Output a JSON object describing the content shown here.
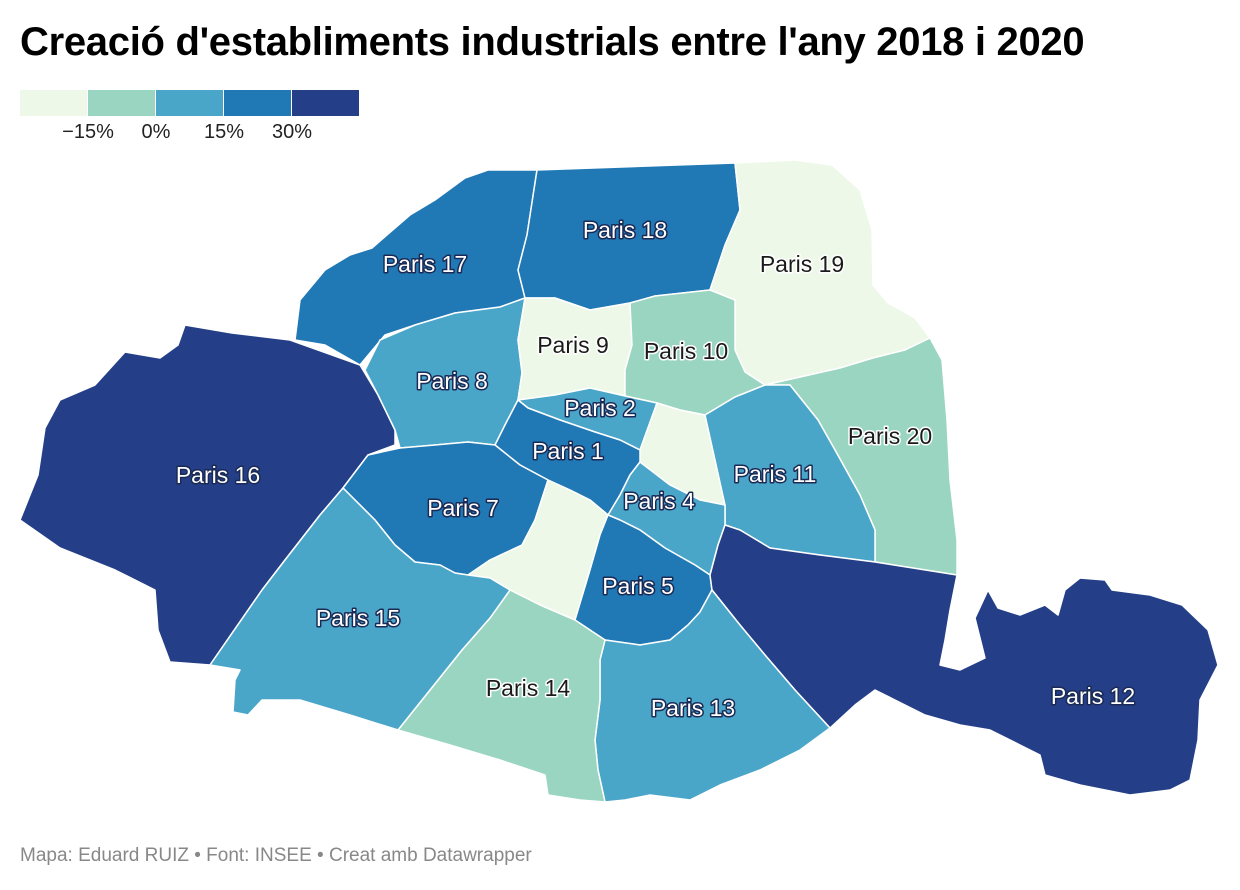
{
  "title": "Creació d'establiments industrials entre l'any 2018 i 2020",
  "legend": {
    "colors": [
      "#edf8e9",
      "#99d5c1",
      "#4aa6c9",
      "#2078b4",
      "#243f88"
    ],
    "ticks": [
      "−15%",
      "0%",
      "15%",
      "30%"
    ]
  },
  "districts": [
    {
      "id": "p1",
      "label": "Paris 1",
      "bin": 3
    },
    {
      "id": "p2",
      "label": "Paris 2",
      "bin": 2
    },
    {
      "id": "p3",
      "label": "",
      "bin": 0
    },
    {
      "id": "p4",
      "label": "Paris 4",
      "bin": 2
    },
    {
      "id": "p5",
      "label": "Paris 5",
      "bin": 3
    },
    {
      "id": "p6",
      "label": "",
      "bin": 0
    },
    {
      "id": "p7",
      "label": "Paris 7",
      "bin": 3
    },
    {
      "id": "p8",
      "label": "Paris 8",
      "bin": 2
    },
    {
      "id": "p9",
      "label": "Paris 9",
      "bin": 0
    },
    {
      "id": "p10",
      "label": "Paris 10",
      "bin": 1
    },
    {
      "id": "p11",
      "label": "Paris 11",
      "bin": 2
    },
    {
      "id": "p12",
      "label": "Paris 12",
      "bin": 4
    },
    {
      "id": "p13",
      "label": "Paris 13",
      "bin": 2
    },
    {
      "id": "p14",
      "label": "Paris 14",
      "bin": 1
    },
    {
      "id": "p15",
      "label": "Paris 15",
      "bin": 2
    },
    {
      "id": "p16",
      "label": "Paris 16",
      "bin": 4
    },
    {
      "id": "p17",
      "label": "Paris 17",
      "bin": 3
    },
    {
      "id": "p18",
      "label": "Paris 18",
      "bin": 3
    },
    {
      "id": "p19",
      "label": "Paris 19",
      "bin": 0
    },
    {
      "id": "p20",
      "label": "Paris 20",
      "bin": 1
    }
  ],
  "source": "Mapa: Eduard RUIZ • Font: INSEE • Creat amb Datawrapper"
}
